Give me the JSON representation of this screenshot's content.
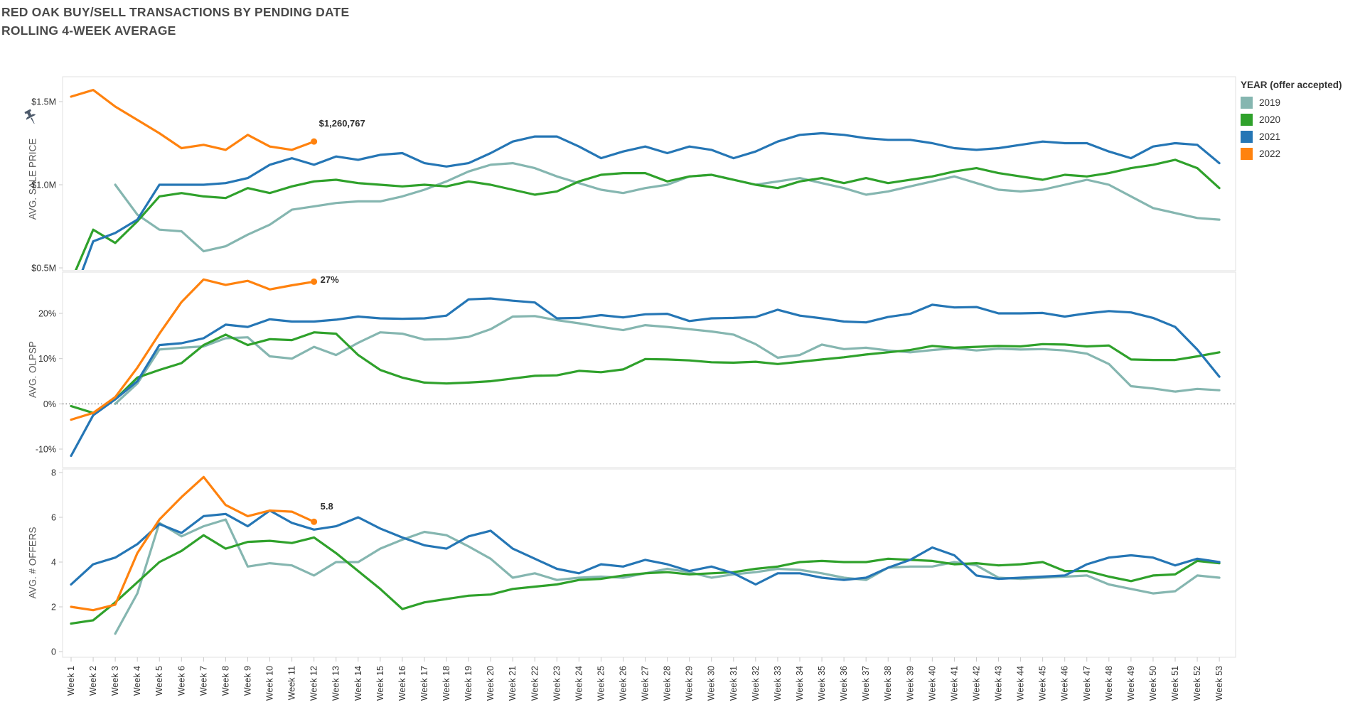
{
  "title": {
    "line1": "RED OAK BUY/SELL TRANSACTIONS BY PENDING DATE",
    "line2": "ROLLING 4-WEEK AVERAGE"
  },
  "legend": {
    "title": "YEAR (offer accepted)",
    "items": [
      {
        "label": "2019",
        "color": "#85b6b0"
      },
      {
        "label": "2020",
        "color": "#2fa12b"
      },
      {
        "label": "2021",
        "color": "#2576b5"
      },
      {
        "label": "2022",
        "color": "#ff820e"
      }
    ]
  },
  "annotations": {
    "sale_price": "$1,260,767",
    "olpsp": "27%",
    "offers": "5.8"
  },
  "icons": {
    "pin": "pin-icon"
  },
  "chart_data": [
    {
      "type": "line",
      "title": "AVG. SALE PRICE",
      "ylabel": "AVG. SALE PRICE",
      "xlabel": "",
      "unit": "USD millions",
      "grid": false,
      "legend_position": "right",
      "ylim": [
        0.48,
        1.65
      ],
      "yticks": [
        {
          "value": 1.5,
          "label": "$1.5M"
        },
        {
          "value": 1.0,
          "label": "$1.0M"
        },
        {
          "value": 0.5,
          "label": "$0.5M"
        }
      ],
      "categories": [
        "Week 1",
        "Week 2",
        "Week 3",
        "Week 4",
        "Week 5",
        "Week 6",
        "Week 7",
        "Week 8",
        "Week 9",
        "Week 10",
        "Week 11",
        "Week 12",
        "Week 13",
        "Week 14",
        "Week 15",
        "Week 16",
        "Week 17",
        "Week 18",
        "Week 19",
        "Week 20",
        "Week 21",
        "Week 22",
        "Week 23",
        "Week 24",
        "Week 25",
        "Week 26",
        "Week 27",
        "Week 28",
        "Week 29",
        "Week 30",
        "Week 31",
        "Week 32",
        "Week 33",
        "Week 34",
        "Week 35",
        "Week 36",
        "Week 37",
        "Week 38",
        "Week 39",
        "Week 40",
        "Week 41",
        "Week 42",
        "Week 43",
        "Week 44",
        "Week 45",
        "Week 46",
        "Week 47",
        "Week 48",
        "Week 49",
        "Week 50",
        "Week 51",
        "Week 52",
        "Week 53"
      ],
      "annotation": {
        "text": "$1,260,767",
        "series": "2022",
        "week": "Week 12",
        "value": 1.26
      },
      "series": [
        {
          "name": "2019",
          "color": "#85b6b0",
          "values": [
            null,
            null,
            1.0,
            0.82,
            0.73,
            0.72,
            0.6,
            0.63,
            0.7,
            0.76,
            0.85,
            0.87,
            0.89,
            0.9,
            0.9,
            0.93,
            0.97,
            1.02,
            1.08,
            1.12,
            1.13,
            1.1,
            1.05,
            1.01,
            0.97,
            0.95,
            0.98,
            1.0,
            1.05,
            1.06,
            1.03,
            1.0,
            1.02,
            1.04,
            1.01,
            0.98,
            0.94,
            0.96,
            0.99,
            1.02,
            1.05,
            1.01,
            0.97,
            0.96,
            0.97,
            1.0,
            1.03,
            1.0,
            0.93,
            0.86,
            0.83,
            0.8,
            0.79
          ]
        },
        {
          "name": "2020",
          "color": "#2fa12b",
          "values": [
            0.42,
            0.73,
            0.65,
            0.78,
            0.93,
            0.95,
            0.93,
            0.92,
            0.98,
            0.95,
            0.99,
            1.02,
            1.03,
            1.01,
            1.0,
            0.99,
            1.0,
            0.99,
            1.02,
            1.0,
            0.97,
            0.94,
            0.96,
            1.02,
            1.06,
            1.07,
            1.07,
            1.02,
            1.05,
            1.06,
            1.03,
            1.0,
            0.98,
            1.02,
            1.04,
            1.01,
            1.04,
            1.01,
            1.03,
            1.05,
            1.08,
            1.1,
            1.07,
            1.05,
            1.03,
            1.06,
            1.05,
            1.07,
            1.1,
            1.12,
            1.15,
            1.1,
            0.98
          ]
        },
        {
          "name": "2021",
          "color": "#2576b5",
          "values": [
            0.3,
            0.66,
            0.71,
            0.79,
            1.0,
            1.0,
            1.0,
            1.01,
            1.04,
            1.12,
            1.16,
            1.12,
            1.17,
            1.15,
            1.18,
            1.19,
            1.13,
            1.11,
            1.13,
            1.19,
            1.26,
            1.29,
            1.29,
            1.23,
            1.16,
            1.2,
            1.23,
            1.19,
            1.23,
            1.21,
            1.16,
            1.2,
            1.26,
            1.3,
            1.31,
            1.3,
            1.28,
            1.27,
            1.27,
            1.25,
            1.22,
            1.21,
            1.22,
            1.24,
            1.26,
            1.25,
            1.25,
            1.2,
            1.16,
            1.23,
            1.25,
            1.24,
            1.13
          ]
        },
        {
          "name": "2022",
          "color": "#ff820e",
          "endpoint_dot": true,
          "values": [
            1.53,
            1.57,
            1.47,
            1.39,
            1.31,
            1.22,
            1.24,
            1.21,
            1.3,
            1.23,
            1.21,
            1.26
          ]
        }
      ]
    },
    {
      "type": "line",
      "title": "AVG. OLPSP",
      "ylabel": "AVG. OLPSP",
      "xlabel": "",
      "unit": "percent",
      "grid": false,
      "zero_line": true,
      "legend_position": "right",
      "ylim": [
        -14.2,
        29.1
      ],
      "yticks": [
        {
          "value": 20,
          "label": "20%"
        },
        {
          "value": 10,
          "label": "10%"
        },
        {
          "value": 0,
          "label": "0%"
        },
        {
          "value": -10,
          "label": "-10%"
        }
      ],
      "categories": [
        "Week 1",
        "Week 2",
        "Week 3",
        "Week 4",
        "Week 5",
        "Week 6",
        "Week 7",
        "Week 8",
        "Week 9",
        "Week 10",
        "Week 11",
        "Week 12",
        "Week 13",
        "Week 14",
        "Week 15",
        "Week 16",
        "Week 17",
        "Week 18",
        "Week 19",
        "Week 20",
        "Week 21",
        "Week 22",
        "Week 23",
        "Week 24",
        "Week 25",
        "Week 26",
        "Week 27",
        "Week 28",
        "Week 29",
        "Week 30",
        "Week 31",
        "Week 32",
        "Week 33",
        "Week 34",
        "Week 35",
        "Week 36",
        "Week 37",
        "Week 38",
        "Week 39",
        "Week 40",
        "Week 41",
        "Week 42",
        "Week 43",
        "Week 44",
        "Week 45",
        "Week 46",
        "Week 47",
        "Week 48",
        "Week 49",
        "Week 50",
        "Week 51",
        "Week 52",
        "Week 53"
      ],
      "annotation": {
        "text": "27%",
        "series": "2022",
        "week": "Week 12",
        "value": 27
      },
      "series": [
        {
          "name": "2019",
          "color": "#85b6b0",
          "values": [
            null,
            null,
            0,
            4.5,
            12,
            12.4,
            12.7,
            14.5,
            14.7,
            10.5,
            10,
            12.6,
            10.8,
            13.5,
            15.8,
            15.5,
            14.2,
            14.3,
            14.8,
            16.5,
            19.3,
            19.4,
            18.5,
            17.8,
            17,
            16.3,
            17.4,
            17,
            16.5,
            16,
            15.3,
            13.2,
            10.2,
            10.8,
            13.1,
            12.1,
            12.4,
            11.8,
            11.4,
            11.9,
            12.3,
            11.8,
            12.2,
            12,
            12.1,
            11.8,
            11.1,
            8.8,
            3.9,
            3.4,
            2.7,
            3.3,
            3.0
          ]
        },
        {
          "name": "2020",
          "color": "#2fa12b",
          "values": [
            -0.5,
            -2,
            1,
            5.8,
            7.5,
            9,
            13,
            15.3,
            13,
            14.3,
            14.1,
            15.8,
            15.5,
            10.8,
            7.5,
            5.8,
            4.7,
            4.5,
            4.7,
            5.0,
            5.6,
            6.2,
            6.3,
            7.3,
            7.0,
            7.6,
            9.9,
            9.8,
            9.6,
            9.2,
            9.1,
            9.3,
            8.8,
            9.3,
            9.8,
            10.3,
            10.9,
            11.4,
            11.9,
            12.8,
            12.4,
            12.6,
            12.8,
            12.7,
            13.2,
            13.1,
            12.7,
            12.9,
            9.8,
            9.7,
            9.7,
            10.5,
            11.4
          ]
        },
        {
          "name": "2021",
          "color": "#2576b5",
          "values": [
            -11.5,
            -2.5,
            1,
            5,
            13,
            13.4,
            14.5,
            17.5,
            17,
            18.7,
            18.2,
            18.2,
            18.6,
            19.3,
            18.9,
            18.8,
            18.9,
            19.5,
            23.1,
            23.3,
            22.8,
            22.4,
            18.9,
            19.0,
            19.6,
            19.1,
            19.8,
            19.9,
            18.3,
            18.9,
            19.0,
            19.2,
            20.8,
            19.5,
            18.9,
            18.2,
            18.0,
            19.2,
            19.9,
            21.9,
            21.3,
            21.4,
            20.0,
            20.0,
            20.1,
            19.3,
            20.0,
            20.5,
            20.2,
            19.0,
            17.0,
            12.0,
            6.0
          ]
        },
        {
          "name": "2022",
          "color": "#ff820e",
          "endpoint_dot": true,
          "values": [
            -3.5,
            -2,
            1.5,
            8,
            15.5,
            22.5,
            27.5,
            26.3,
            27.2,
            25.3,
            26.2,
            27
          ]
        }
      ]
    },
    {
      "type": "line",
      "title": "AVG. # OFFERS",
      "ylabel": "AVG. # OFFERS",
      "xlabel": "",
      "unit": "count",
      "grid": false,
      "legend_position": "right",
      "ylim": [
        -0.25,
        8.16
      ],
      "yticks": [
        {
          "value": 8,
          "label": "8"
        },
        {
          "value": 6,
          "label": "6"
        },
        {
          "value": 4,
          "label": "4"
        },
        {
          "value": 2,
          "label": "2"
        },
        {
          "value": 0,
          "label": "0"
        }
      ],
      "categories": [
        "Week 1",
        "Week 2",
        "Week 3",
        "Week 4",
        "Week 5",
        "Week 6",
        "Week 7",
        "Week 8",
        "Week 9",
        "Week 10",
        "Week 11",
        "Week 12",
        "Week 13",
        "Week 14",
        "Week 15",
        "Week 16",
        "Week 17",
        "Week 18",
        "Week 19",
        "Week 20",
        "Week 21",
        "Week 22",
        "Week 23",
        "Week 24",
        "Week 25",
        "Week 26",
        "Week 27",
        "Week 28",
        "Week 29",
        "Week 30",
        "Week 31",
        "Week 32",
        "Week 33",
        "Week 34",
        "Week 35",
        "Week 36",
        "Week 37",
        "Week 38",
        "Week 39",
        "Week 40",
        "Week 41",
        "Week 42",
        "Week 43",
        "Week 44",
        "Week 45",
        "Week 46",
        "Week 47",
        "Week 48",
        "Week 49",
        "Week 50",
        "Week 51",
        "Week 52",
        "Week 53"
      ],
      "annotation": {
        "text": "5.8",
        "series": "2022",
        "week": "Week 12",
        "value": 5.8
      },
      "series": [
        {
          "name": "2019",
          "color": "#85b6b0",
          "values": [
            null,
            null,
            0.8,
            2.6,
            5.75,
            5.15,
            5.6,
            5.9,
            3.8,
            3.95,
            3.85,
            3.4,
            4.0,
            4.0,
            4.6,
            5.0,
            5.35,
            5.2,
            4.7,
            4.15,
            3.3,
            3.5,
            3.2,
            3.3,
            3.35,
            3.3,
            3.5,
            3.7,
            3.55,
            3.3,
            3.45,
            3.55,
            3.7,
            3.65,
            3.5,
            3.3,
            3.2,
            3.75,
            3.8,
            3.8,
            4.0,
            3.85,
            3.3,
            3.25,
            3.3,
            3.35,
            3.4,
            3.0,
            2.8,
            2.6,
            2.7,
            3.4,
            3.3
          ]
        },
        {
          "name": "2020",
          "color": "#2fa12b",
          "values": [
            1.25,
            1.4,
            2.2,
            3.1,
            4.0,
            4.5,
            5.2,
            4.6,
            4.9,
            4.95,
            4.85,
            5.1,
            4.4,
            3.6,
            2.8,
            1.9,
            2.2,
            2.35,
            2.5,
            2.55,
            2.8,
            2.9,
            3.0,
            3.2,
            3.25,
            3.4,
            3.5,
            3.55,
            3.45,
            3.5,
            3.55,
            3.7,
            3.8,
            4.0,
            4.05,
            4.0,
            4.0,
            4.15,
            4.1,
            4.05,
            3.9,
            3.95,
            3.85,
            3.9,
            4.0,
            3.6,
            3.6,
            3.35,
            3.15,
            3.4,
            3.45,
            4.05,
            3.95
          ]
        },
        {
          "name": "2021",
          "color": "#2576b5",
          "values": [
            3.0,
            3.9,
            4.2,
            4.8,
            5.7,
            5.3,
            6.05,
            6.15,
            5.6,
            6.3,
            5.75,
            5.45,
            5.6,
            6.0,
            5.5,
            5.1,
            4.75,
            4.6,
            5.15,
            5.4,
            4.6,
            4.15,
            3.7,
            3.5,
            3.9,
            3.8,
            4.1,
            3.9,
            3.6,
            3.8,
            3.5,
            3.0,
            3.5,
            3.5,
            3.3,
            3.2,
            3.3,
            3.75,
            4.1,
            4.65,
            4.3,
            3.4,
            3.25,
            3.3,
            3.35,
            3.4,
            3.9,
            4.2,
            4.3,
            4.2,
            3.85,
            4.15,
            4.0
          ]
        },
        {
          "name": "2022",
          "color": "#ff820e",
          "endpoint_dot": true,
          "values": [
            2.0,
            1.85,
            2.1,
            4.4,
            5.9,
            6.9,
            7.8,
            6.55,
            6.05,
            6.3,
            6.25,
            5.8
          ]
        }
      ]
    }
  ]
}
